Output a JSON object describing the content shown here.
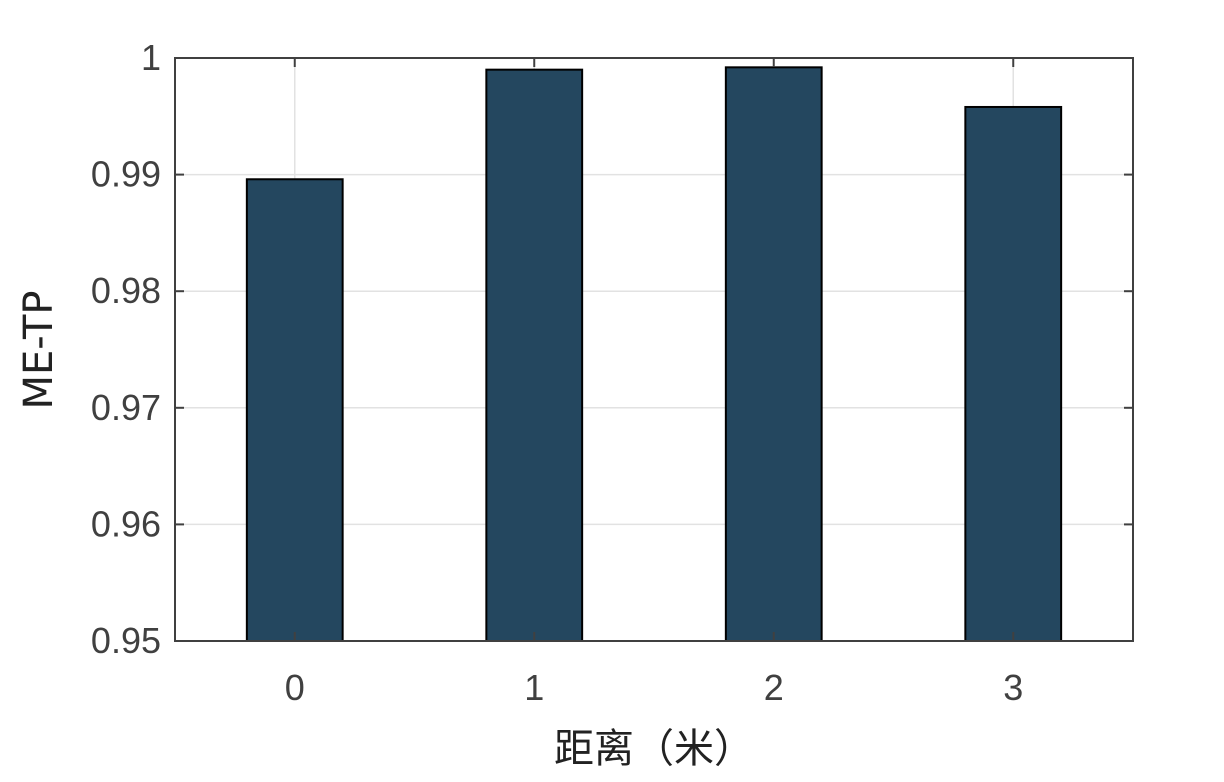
{
  "chart_data": {
    "type": "bar",
    "categories": [
      "0",
      "1",
      "2",
      "3"
    ],
    "values": [
      0.9896,
      0.999,
      0.9992,
      0.9958
    ],
    "xlabel": "距离（米）",
    "ylabel": "ME-TP",
    "ylim": [
      0.95,
      1
    ],
    "yticks": [
      "0.95",
      "0.96",
      "0.97",
      "0.98",
      "0.99",
      "1"
    ],
    "grid": true,
    "bar_color": "#24475f",
    "bar_edge_color": "#000000"
  }
}
